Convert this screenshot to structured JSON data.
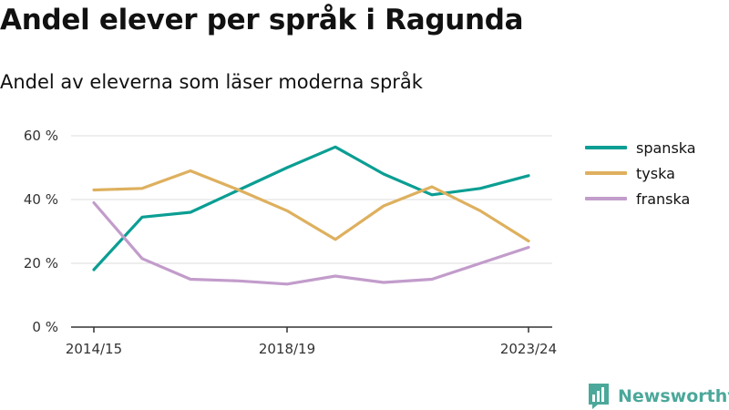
{
  "title": "Andel elever per språk i Ragunda",
  "subtitle": "Andel av eleverna som läser moderna språk",
  "brand": {
    "name": "Newsworthy",
    "color": "#4ba89a",
    "icon": "bar-chart-speech-bubble-icon"
  },
  "colors": {
    "spanska": "#0b9e93",
    "tyska": "#deb05e",
    "franska": "#c29ccb",
    "grid": "#dddddd",
    "axis": "#333333"
  },
  "chart_data": {
    "type": "line",
    "x": [
      "2014/15",
      "2015/16",
      "2016/17",
      "2017/18",
      "2018/19",
      "2019/20",
      "2020/21",
      "2021/22",
      "2022/23",
      "2023/24"
    ],
    "x_tick_labels": [
      "2014/15",
      "2018/19",
      "2023/24"
    ],
    "y_ticks": [
      0,
      20,
      40,
      60
    ],
    "y_tick_labels": [
      "0 %",
      "20 %",
      "40 %",
      "60 %"
    ],
    "ylim": [
      0,
      60
    ],
    "grid": true,
    "legend_position": "right",
    "series": [
      {
        "name": "spanska",
        "values": [
          18,
          34.5,
          36,
          43,
          50,
          56.5,
          48,
          41.5,
          43.5,
          47.5
        ]
      },
      {
        "name": "tyska",
        "values": [
          43,
          43.5,
          49,
          43,
          36.5,
          27.5,
          38,
          44,
          36.5,
          27
        ]
      },
      {
        "name": "franska",
        "values": [
          39,
          21.5,
          15,
          14.5,
          13.5,
          16,
          14,
          15,
          20,
          25
        ]
      }
    ]
  }
}
